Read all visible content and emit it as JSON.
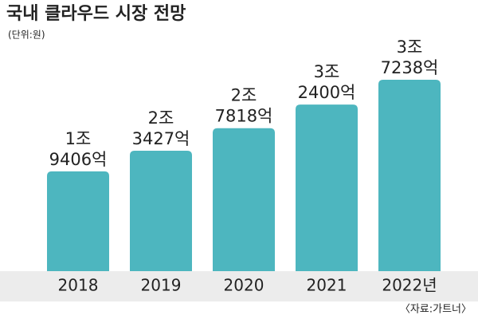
{
  "chart_data": {
    "type": "bar",
    "title": "국내 클라우드 시장 전망",
    "subtitle": "(단위:원)",
    "categories": [
      "2018",
      "2019",
      "2020",
      "2021",
      "2022년"
    ],
    "values": [
      19406,
      23427,
      27818,
      32400,
      37238
    ],
    "value_labels": [
      [
        "1조",
        "9406억"
      ],
      [
        "2조",
        "3427억"
      ],
      [
        "2조",
        "7818억"
      ],
      [
        "3조",
        "2400억"
      ],
      [
        "3조",
        "7238억"
      ]
    ],
    "color": "#4db6bf",
    "source": "〈자료:가트너〉"
  }
}
